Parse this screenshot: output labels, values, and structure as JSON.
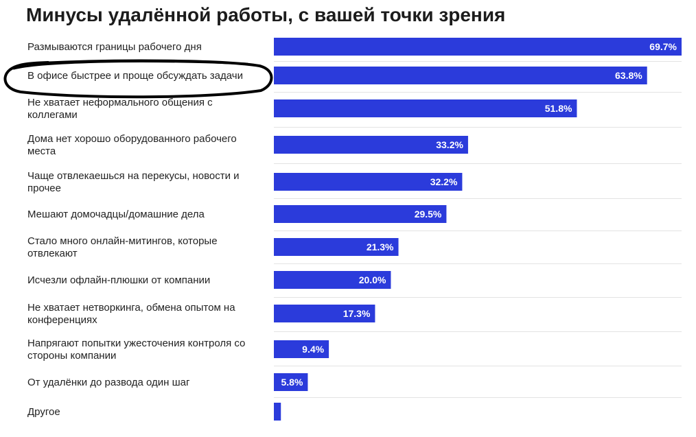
{
  "chart_data": {
    "type": "bar",
    "orientation": "horizontal",
    "title": "Минусы удалённой работы, с вашей точки зрения",
    "categories": [
      "Размываются границы рабочего дня",
      "В офисе быстрее и проще обсуждать задачи",
      "Не хватает неформального общения с коллегами",
      "Дома нет хорошо оборудованного рабочего места",
      "Чаще отвлекаешься на перекусы, новости и прочее",
      "Мешают домочадцы/домашние дела",
      "Стало много онлайн-митингов, которые отвлекают",
      "Исчезли офлайн-плюшки от компании",
      "Не хватает нетворкинга, обмена опытом на конференциях",
      "Напрягают попытки ужесточения контроля со стороны компании",
      "От удалёнки до развода один шаг",
      "Другое"
    ],
    "category_lines": [
      [
        "Размываются границы рабочего дня"
      ],
      [
        "В офисе быстрее и проще обсуждать задачи"
      ],
      [
        "Не хватает неформального общения с",
        "коллегами"
      ],
      [
        "Дома нет хорошо оборудованного рабочего",
        "места"
      ],
      [
        "Чаще отвлекаешься на перекусы, новости и",
        "прочее"
      ],
      [
        "Мешают домочадцы/домашние дела"
      ],
      [
        "Стало много онлайн-митингов, которые",
        "отвлекают"
      ],
      [
        "Исчезли офлайн-плюшки от компании"
      ],
      [
        "Не хватает нетворкинга, обмена опытом на",
        "конференциях"
      ],
      [
        "Напрягают попытки ужесточения контроля со",
        "стороны компании"
      ],
      [
        "От удалёнки до развода один шаг"
      ],
      [
        "Другое"
      ]
    ],
    "values": [
      69.7,
      63.8,
      51.8,
      33.2,
      32.2,
      29.5,
      21.3,
      20.0,
      17.3,
      9.4,
      5.8,
      1.2
    ],
    "value_labels": [
      "69.7%",
      "63.8%",
      "51.8%",
      "33.2%",
      "32.2%",
      "29.5%",
      "21.3%",
      "20.0%",
      "17.3%",
      "9.4%",
      "5.8%",
      ""
    ],
    "xlim": [
      0,
      69.7
    ],
    "grid": false,
    "legend": "none",
    "bar_color": "#2b3bdb",
    "separator_color": "#e3e3e3",
    "annotation": "hand-drawn ellipse around the second category",
    "highlighted_index": 1
  }
}
